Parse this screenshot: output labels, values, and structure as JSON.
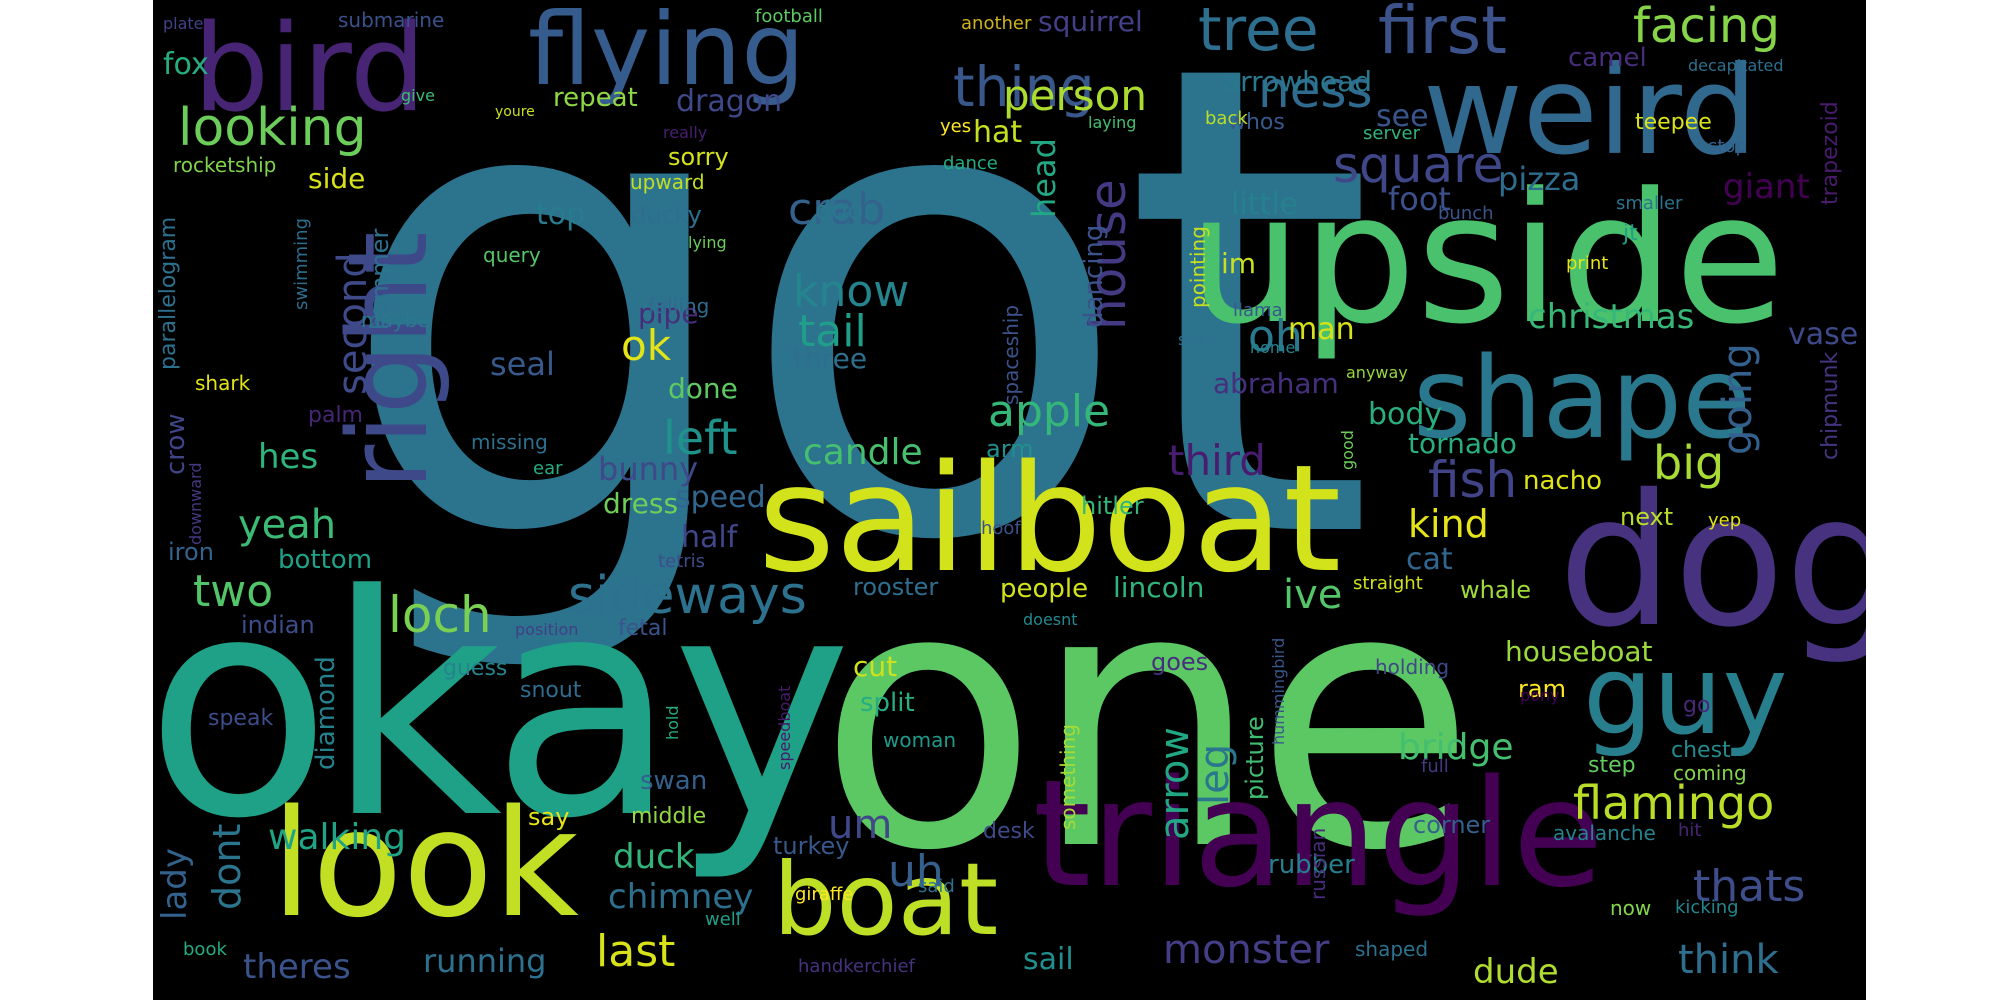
{
  "canvas": {
    "background": "#000000",
    "page_background": "#ffffff"
  },
  "words": [
    {
      "text": "got",
      "color": "#2c738e"
    },
    {
      "text": "one",
      "color": "#5cc863"
    },
    {
      "text": "okay",
      "color": "#1fa187"
    },
    {
      "text": "upside",
      "color": "#4ac16d"
    },
    {
      "text": "sailboat",
      "color": "#d2e21b"
    },
    {
      "text": "triangle",
      "color": "#440154"
    },
    {
      "text": "dog",
      "color": "#46327e"
    },
    {
      "text": "look",
      "color": "#c2df23"
    },
    {
      "text": "weird",
      "color": "#31688e"
    },
    {
      "text": "shape",
      "color": "#2a788e"
    },
    {
      "text": "bird",
      "color": "#482475"
    },
    {
      "text": "flying",
      "color": "#365c8d"
    },
    {
      "text": "boat",
      "color": "#bddf26"
    },
    {
      "text": "guy",
      "color": "#277f8e"
    },
    {
      "text": "right",
      "color": "#3e4989"
    },
    {
      "text": "first",
      "color": "#3b528b"
    },
    {
      "text": "tree",
      "color": "#2e6e8e"
    },
    {
      "text": "facing",
      "color": "#86d549"
    },
    {
      "text": "thing",
      "color": "#38588c"
    },
    {
      "text": "ness",
      "color": "#2f6b8e"
    },
    {
      "text": "looking",
      "color": "#6ccd5a"
    },
    {
      "text": "person",
      "color": "#addc30"
    },
    {
      "text": "square",
      "color": "#3f4788"
    },
    {
      "text": "crab",
      "color": "#33638d"
    },
    {
      "text": "know",
      "color": "#25858e"
    },
    {
      "text": "tail",
      "color": "#1f9e89"
    },
    {
      "text": "house",
      "color": "#443a83"
    },
    {
      "text": "second",
      "color": "#3e4a89"
    },
    {
      "text": "christmas",
      "color": "#37b878"
    },
    {
      "text": "ok",
      "color": "#e2e418"
    },
    {
      "text": "oh",
      "color": "#297a8e"
    },
    {
      "text": "fish",
      "color": "#414487"
    },
    {
      "text": "big",
      "color": "#a8db34"
    },
    {
      "text": "going",
      "color": "#34608d"
    },
    {
      "text": "apple",
      "color": "#35b779"
    },
    {
      "text": "left",
      "color": "#20928c"
    },
    {
      "text": "third",
      "color": "#481c6e"
    },
    {
      "text": "kind",
      "color": "#e5e419"
    },
    {
      "text": "yeah",
      "color": "#3bbb75"
    },
    {
      "text": "sideways",
      "color": "#2c728e"
    },
    {
      "text": "two",
      "color": "#52c569"
    },
    {
      "text": "loch",
      "color": "#7ad151"
    },
    {
      "text": "ive",
      "color": "#54c568"
    },
    {
      "text": "arrow",
      "color": "#22a785"
    },
    {
      "text": "leg",
      "color": "#2a768e"
    },
    {
      "text": "flamingo",
      "color": "#bade28"
    },
    {
      "text": "thats",
      "color": "#3d4e8a"
    },
    {
      "text": "walking",
      "color": "#20a486"
    },
    {
      "text": "bridge",
      "color": "#44bf70"
    },
    {
      "text": "um",
      "color": "#3f4889"
    },
    {
      "text": "uh",
      "color": "#355f8d"
    },
    {
      "text": "last",
      "color": "#d8e219"
    },
    {
      "text": "monster",
      "color": "#433e85"
    },
    {
      "text": "think",
      "color": "#2e6f8e"
    },
    {
      "text": "dude",
      "color": "#b0dd2f"
    },
    {
      "text": "theres",
      "color": "#3a538b"
    },
    {
      "text": "running",
      "color": "#2d718e"
    },
    {
      "text": "sail",
      "color": "#218f8d"
    },
    {
      "text": "duck",
      "color": "#31b57b"
    },
    {
      "text": "chimney",
      "color": "#2d708e"
    },
    {
      "text": "dont",
      "color": "#2b758e"
    },
    {
      "text": "lady",
      "color": "#33638d"
    },
    {
      "text": "hes",
      "color": "#2fb47c"
    },
    {
      "text": "palm",
      "color": "#482677"
    },
    {
      "text": "crow",
      "color": "#404588"
    },
    {
      "text": "man",
      "color": "#d5e21a"
    },
    {
      "text": "body",
      "color": "#29af7f"
    },
    {
      "text": "tornado",
      "color": "#28ae80"
    },
    {
      "text": "nacho",
      "color": "#dde318"
    },
    {
      "text": "next",
      "color": "#b8de29"
    },
    {
      "text": "cat",
      "color": "#31678e"
    },
    {
      "text": "whale",
      "color": "#a0da39"
    },
    {
      "text": "houseboat",
      "color": "#9bd93c"
    },
    {
      "text": "ram",
      "color": "#fde725"
    },
    {
      "text": "pizza",
      "color": "#2e6d8e"
    },
    {
      "text": "foot",
      "color": "#3c508b"
    },
    {
      "text": "little",
      "color": "#27808e"
    },
    {
      "text": "see",
      "color": "#39568c"
    },
    {
      "text": "whos",
      "color": "#38598c"
    },
    {
      "text": "hat",
      "color": "#c5e021"
    },
    {
      "text": "head",
      "color": "#22a884"
    },
    {
      "text": "im",
      "color": "#cae11f"
    },
    {
      "text": "top",
      "color": "#297b8e"
    },
    {
      "text": "side",
      "color": "#d8e219"
    },
    {
      "text": "dragon",
      "color": "#3f4889"
    },
    {
      "text": "repeat",
      "color": "#8fd744"
    },
    {
      "text": "fox",
      "color": "#26ad81"
    },
    {
      "text": "squirrel",
      "color": "#424086"
    },
    {
      "text": "arrowhead",
      "color": "#2a788e"
    },
    {
      "text": "teepee",
      "color": "#dae319"
    },
    {
      "text": "camel",
      "color": "#472d7b"
    },
    {
      "text": "giant",
      "color": "#440154"
    },
    {
      "text": "vase",
      "color": "#3e4a89"
    },
    {
      "text": "chipmunk",
      "color": "#453581"
    },
    {
      "text": "trapezoid",
      "color": "#481b6d"
    },
    {
      "text": "abraham",
      "color": "#46307e"
    },
    {
      "text": "candle",
      "color": "#46c06f"
    },
    {
      "text": "speed",
      "color": "#31678e"
    },
    {
      "text": "half",
      "color": "#3f4788"
    },
    {
      "text": "rooster",
      "color": "#2e6e8e"
    },
    {
      "text": "people",
      "color": "#d2e21b"
    },
    {
      "text": "lincoln",
      "color": "#2fb47c"
    },
    {
      "text": "hitler",
      "color": "#32b67a"
    },
    {
      "text": "dress",
      "color": "#6ece58"
    },
    {
      "text": "bunny",
      "color": "#3e4989"
    },
    {
      "text": "seal",
      "color": "#38598c"
    },
    {
      "text": "done",
      "color": "#5ec962"
    },
    {
      "text": "three",
      "color": "#2e6f8e"
    },
    {
      "text": "pipe",
      "color": "#472c7a"
    },
    {
      "text": "door",
      "color": "#2a778e"
    },
    {
      "text": "dancing",
      "color": "#3b528b"
    },
    {
      "text": "spaceship",
      "color": "#3b528b"
    },
    {
      "text": "pointing",
      "color": "#c5e021"
    },
    {
      "text": "llama",
      "color": "#38598c"
    },
    {
      "text": "hammer",
      "color": "#2c728e"
    },
    {
      "text": "ducky",
      "color": "#2e6f8e"
    },
    {
      "text": "sorry",
      "color": "#d5e21a"
    },
    {
      "text": "upward",
      "color": "#c0df25"
    },
    {
      "text": "query",
      "color": "#54c568"
    },
    {
      "text": "falling",
      "color": "#306a8e"
    },
    {
      "text": "maybe",
      "color": "#29798e"
    },
    {
      "text": "shark",
      "color": "#e2e418"
    },
    {
      "text": "parallelogram",
      "color": "#2d718e"
    },
    {
      "text": "swimming",
      "color": "#2e6d8e"
    },
    {
      "text": "rocketship",
      "color": "#7fd34e"
    },
    {
      "text": "iron",
      "color": "#32648e"
    },
    {
      "text": "bottom",
      "color": "#1fa188"
    },
    {
      "text": "indian",
      "color": "#3e4c8a"
    },
    {
      "text": "diamond",
      "color": "#26818e"
    },
    {
      "text": "guess",
      "color": "#25848e"
    },
    {
      "text": "snout",
      "color": "#2f6c8e"
    },
    {
      "text": "say",
      "color": "#e5e419"
    },
    {
      "text": "middle",
      "color": "#93d741"
    },
    {
      "text": "swan",
      "color": "#34608d"
    },
    {
      "text": "turkey",
      "color": "#38588c"
    },
    {
      "text": "split",
      "color": "#26ad81"
    },
    {
      "text": "cut",
      "color": "#cde11d"
    },
    {
      "text": "woman",
      "color": "#1f9a8a"
    },
    {
      "text": "something",
      "color": "#a5db36"
    },
    {
      "text": "picture",
      "color": "#40bd72"
    },
    {
      "text": "goes",
      "color": "#46307e"
    },
    {
      "text": "rubber",
      "color": "#277f8e"
    },
    {
      "text": "corner",
      "color": "#355f8d"
    },
    {
      "text": "desk",
      "color": "#3e4a89"
    },
    {
      "text": "russian",
      "color": "#472d7b"
    },
    {
      "text": "step",
      "color": "#63cb5f"
    },
    {
      "text": "chest",
      "color": "#238a8d"
    },
    {
      "text": "coming",
      "color": "#84d44b"
    },
    {
      "text": "avalanche",
      "color": "#26828e"
    },
    {
      "text": "hit",
      "color": "#482475"
    },
    {
      "text": "kicking",
      "color": "#24868e"
    },
    {
      "text": "now",
      "color": "#84d44b"
    },
    {
      "text": "shaped",
      "color": "#2c718e"
    },
    {
      "text": "holding",
      "color": "#3f4788"
    },
    {
      "text": "full",
      "color": "#453882"
    },
    {
      "text": "pony",
      "color": "#440154"
    },
    {
      "text": "go",
      "color": "#482878"
    },
    {
      "text": "straight",
      "color": "#d0e11c"
    },
    {
      "text": "fetal",
      "color": "#3a548c"
    },
    {
      "text": "position",
      "color": "#433e85"
    },
    {
      "text": "doesnt",
      "color": "#23898e"
    },
    {
      "text": "hummingbird",
      "color": "#39568c"
    },
    {
      "text": "speedboat",
      "color": "#481a6c"
    },
    {
      "text": "hold",
      "color": "#26ad81"
    },
    {
      "text": "speak",
      "color": "#3d4d8a"
    },
    {
      "text": "giraffe",
      "color": "#fde725"
    },
    {
      "text": "handkerchief",
      "color": "#46337f"
    },
    {
      "text": "well",
      "color": "#1f9f88"
    },
    {
      "text": "said",
      "color": "#2c728e"
    },
    {
      "text": "book",
      "color": "#25ab82"
    },
    {
      "text": "ear",
      "color": "#25ac82"
    },
    {
      "text": "missing",
      "color": "#2d708e"
    },
    {
      "text": "downward",
      "color": "#453882"
    },
    {
      "text": "tetris",
      "color": "#3d4d8a"
    },
    {
      "text": "arm",
      "color": "#21908d"
    },
    {
      "text": "hoof",
      "color": "#3b528b"
    },
    {
      "text": "yep",
      "color": "#e2e418"
    },
    {
      "text": "sea",
      "color": "#2c718e"
    },
    {
      "text": "home",
      "color": "#26828e"
    },
    {
      "text": "anyway",
      "color": "#95d840"
    },
    {
      "text": "good",
      "color": "#6ccd5a"
    },
    {
      "text": "print",
      "color": "#e5e419"
    },
    {
      "text": "jt",
      "color": "#1fa088"
    },
    {
      "text": "smaller",
      "color": "#2c738e"
    },
    {
      "text": "stop",
      "color": "#34618d"
    },
    {
      "text": "bunch",
      "color": "#3a548c"
    },
    {
      "text": "server",
      "color": "#2fb47c"
    },
    {
      "text": "laying",
      "color": "#46c06f"
    },
    {
      "text": "back",
      "color": "#bade28"
    },
    {
      "text": "decapitated",
      "color": "#2e6f8e"
    },
    {
      "text": "another",
      "color": "#ceb21f"
    },
    {
      "text": "football",
      "color": "#5ec962"
    },
    {
      "text": "plate",
      "color": "#414287"
    },
    {
      "text": "submarine",
      "color": "#3b518b"
    },
    {
      "text": "give",
      "color": "#3bbb75"
    },
    {
      "text": "youre",
      "color": "#c8e020"
    },
    {
      "text": "really",
      "color": "#481f70"
    },
    {
      "text": "lying",
      "color": "#6ccd5a"
    },
    {
      "text": "yes",
      "color": "#fde725"
    },
    {
      "text": "dance",
      "color": "#25ac82"
    }
  ]
}
